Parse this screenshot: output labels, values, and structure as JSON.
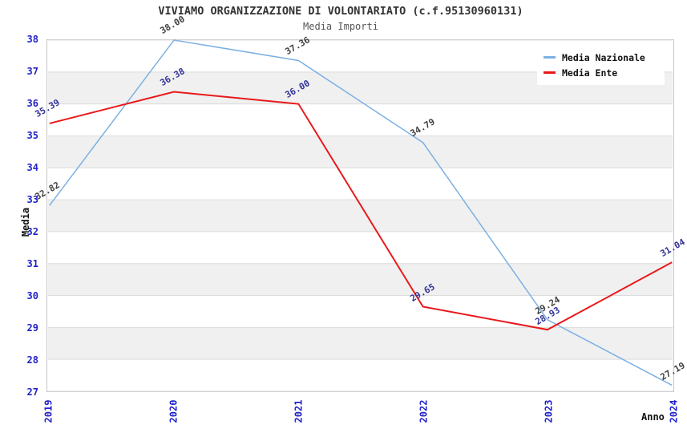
{
  "header": {
    "title": "VIVIAMO ORGANIZZAZIONE DI VOLONTARIATO (c.f.95130960131)",
    "subtitle": "Media Importi"
  },
  "chart_data": {
    "type": "line",
    "title": "VIVIAMO ORGANIZZAZIONE DI VOLONTARIATO (c.f.95130960131)",
    "subtitle": "Media Importi",
    "xlabel": "Anno",
    "ylabel": "Media",
    "x": [
      2019,
      2020,
      2021,
      2022,
      2023,
      2024
    ],
    "series": [
      {
        "name": "Media Nazionale",
        "color": "#7cb0e4",
        "label_color": "#404040",
        "line_width": 1.5,
        "values": [
          32.82,
          38.0,
          37.36,
          34.79,
          29.24,
          27.19
        ]
      },
      {
        "name": "Media Ente",
        "color": "#e8191c",
        "label_color": "#333399",
        "line_width": 2,
        "values": [
          35.39,
          36.38,
          36.0,
          29.65,
          28.93,
          31.04
        ]
      }
    ],
    "ylim": [
      27,
      38
    ],
    "ytick_step": 1,
    "grid": "alternating-horizontal-bands",
    "band_color": "#f0f0f0",
    "gridline_color": "#dcdcdc",
    "tick_label_color": "#2222cc",
    "legend_position": "top-right"
  }
}
